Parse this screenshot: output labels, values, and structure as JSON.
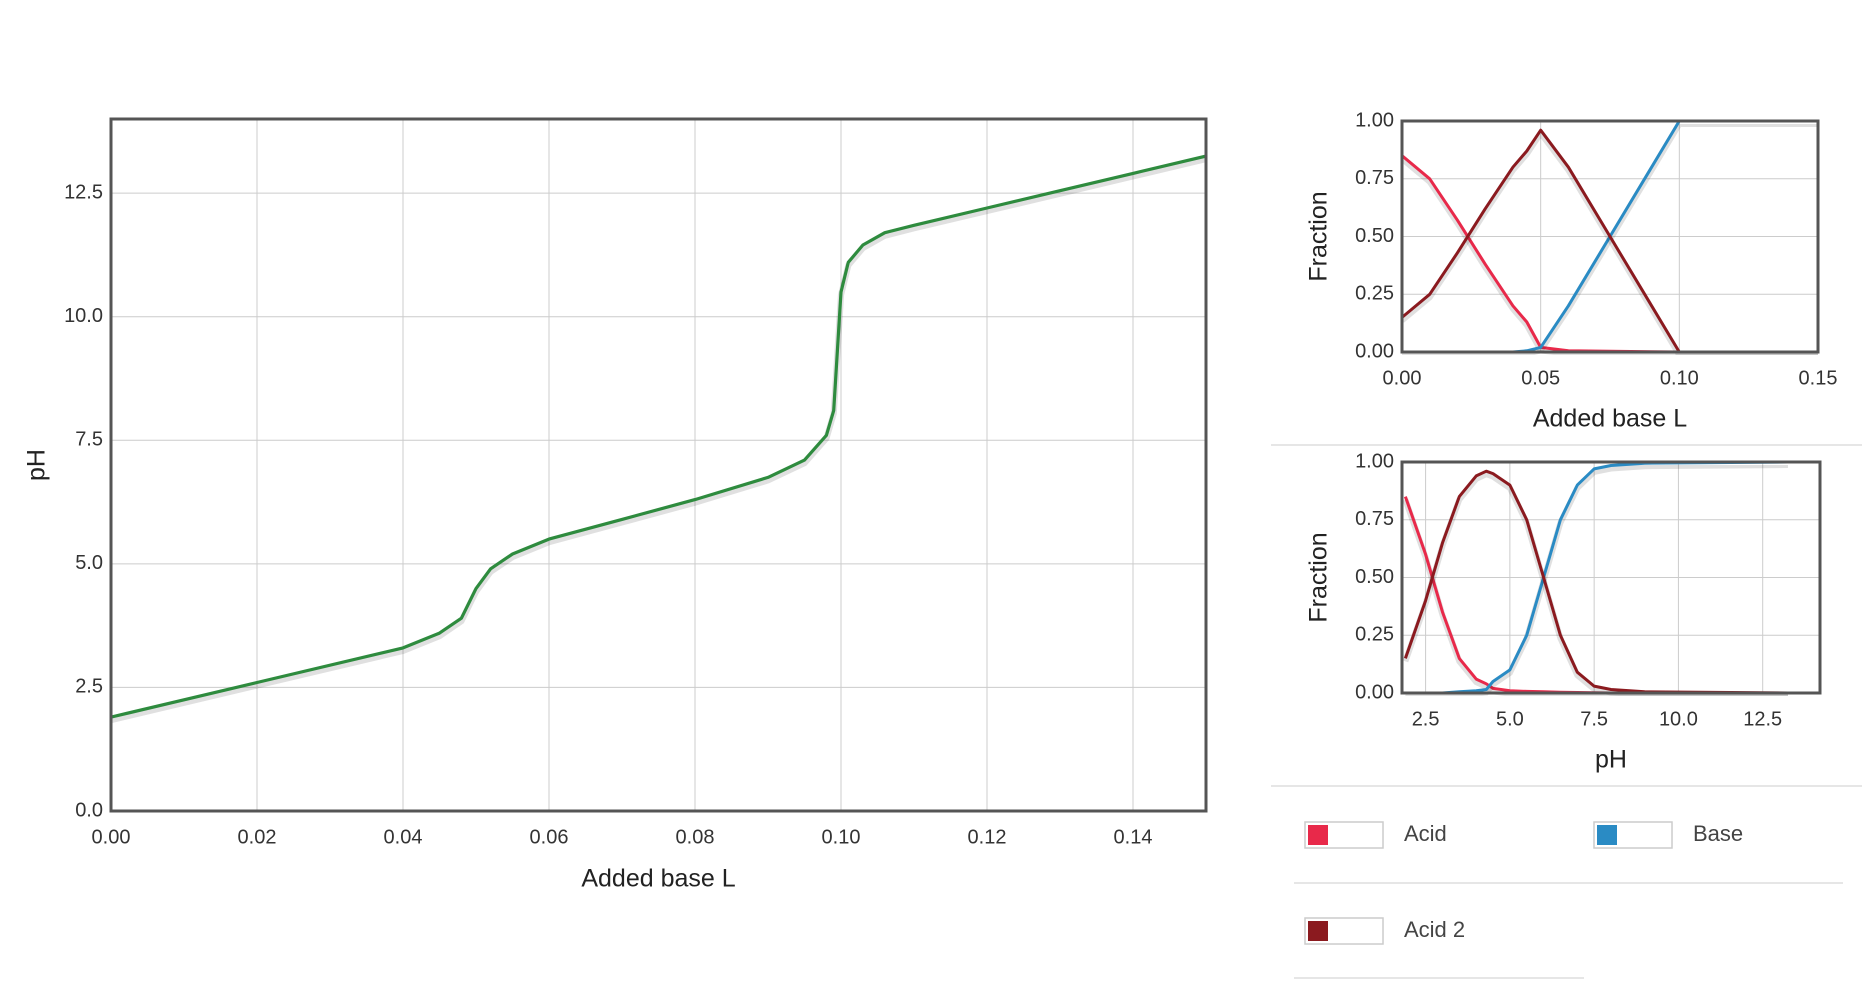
{
  "chart_data": [
    {
      "type": "line",
      "xlabel": "Added base L",
      "ylabel": "pH",
      "color": "#2e8b3e",
      "grid": true,
      "x": [
        0,
        0.02,
        0.04,
        0.045,
        0.048,
        0.05,
        0.052,
        0.055,
        0.06,
        0.07,
        0.08,
        0.09,
        0.095,
        0.098,
        0.099,
        0.1,
        0.101,
        0.103,
        0.106,
        0.11,
        0.12,
        0.13,
        0.14,
        0.15
      ],
      "values": [
        1.9,
        2.6,
        3.3,
        3.6,
        3.9,
        4.5,
        4.9,
        5.2,
        5.5,
        5.9,
        6.3,
        6.75,
        7.1,
        7.6,
        8.1,
        10.5,
        11.1,
        11.45,
        11.7,
        11.85,
        12.2,
        12.55,
        12.9,
        13.25
      ],
      "xlim": [
        0,
        0.15
      ],
      "xticks": [
        {
          "value": 0,
          "label": "0.00"
        },
        {
          "value": 0.02,
          "label": "0.02"
        },
        {
          "value": 0.04,
          "label": "0.04"
        },
        {
          "value": 0.06,
          "label": "0.06"
        },
        {
          "value": 0.08,
          "label": "0.08"
        },
        {
          "value": 0.1,
          "label": "0.10"
        },
        {
          "value": 0.12,
          "label": "0.12"
        },
        {
          "value": 0.14,
          "label": "0.14"
        }
      ],
      "ylim": [
        0,
        14
      ],
      "yticks": [
        {
          "value": 0,
          "label": "0.0"
        },
        2.5,
        {
          "value": 5,
          "label": "5.0"
        },
        7.5,
        {
          "value": 10,
          "label": "10.0"
        },
        12.5
      ]
    },
    {
      "type": "line",
      "xlabel": "Added base L",
      "ylabel": "Fraction",
      "grid": true,
      "x": [
        0,
        0.01,
        0.02,
        0.03,
        0.04,
        0.045,
        0.05,
        0.06,
        0.075,
        0.09,
        0.1,
        0.15
      ],
      "series": [
        {
          "name": "Acid",
          "color": "#e8294a",
          "values": [
            0.85,
            0.75,
            0.57,
            0.38,
            0.2,
            0.13,
            0.02,
            0.005,
            0.003,
            0.001,
            0,
            0
          ]
        },
        {
          "name": "Base",
          "color": "#2a8bc4",
          "values": [
            0,
            0,
            0,
            0,
            0,
            0.005,
            0.02,
            0.2,
            0.5,
            0.8,
            1,
            1
          ]
        },
        {
          "name": "Acid 2",
          "color": "#8b1a1f",
          "values": [
            0.15,
            0.25,
            0.43,
            0.62,
            0.8,
            0.87,
            0.96,
            0.8,
            0.5,
            0.2,
            0,
            0
          ]
        }
      ],
      "xlim": [
        0,
        0.15
      ],
      "xticks": [
        {
          "value": 0,
          "label": "0.00"
        },
        {
          "value": 0.05,
          "label": "0.05"
        },
        {
          "value": 0.1,
          "label": "0.10"
        },
        0.15
      ],
      "ylim": [
        0,
        1
      ],
      "yticks": [
        {
          "value": 0,
          "label": "0.00"
        },
        0.25,
        {
          "value": 0.5,
          "label": "0.50"
        },
        0.75,
        {
          "value": 1,
          "label": "1.00"
        }
      ]
    },
    {
      "type": "line",
      "xlabel": "pH",
      "ylabel": "Fraction",
      "grid": true,
      "x": [
        1.9,
        2.5,
        3,
        3.5,
        4,
        4.3,
        4.5,
        5,
        5.5,
        6,
        6.5,
        7,
        7.5,
        8,
        9,
        13.25
      ],
      "series": [
        {
          "name": "Acid",
          "color": "#e8294a",
          "values": [
            0.85,
            0.6,
            0.35,
            0.15,
            0.06,
            0.04,
            0.02,
            0.01,
            0.007,
            0.005,
            0.003,
            0.002,
            0.001,
            0,
            0,
            0
          ]
        },
        {
          "name": "Base",
          "color": "#2a8bc4",
          "values": [
            0,
            0,
            0,
            0.005,
            0.01,
            0.015,
            0.05,
            0.1,
            0.25,
            0.5,
            0.75,
            0.9,
            0.97,
            0.985,
            0.995,
            1
          ]
        },
        {
          "name": "Acid 2",
          "color": "#8b1a1f",
          "values": [
            0.15,
            0.4,
            0.65,
            0.85,
            0.94,
            0.96,
            0.95,
            0.9,
            0.75,
            0.5,
            0.25,
            0.09,
            0.03,
            0.015,
            0.005,
            0
          ]
        }
      ],
      "xlim": [
        1.8,
        14.2
      ],
      "xticks": [
        2.5,
        {
          "value": 5,
          "label": "5.0"
        },
        7.5,
        {
          "value": 10,
          "label": "10.0"
        },
        12.5
      ],
      "ylim": [
        0,
        1
      ],
      "yticks": [
        {
          "value": 0,
          "label": "0.00"
        },
        0.25,
        {
          "value": 0.5,
          "label": "0.50"
        },
        0.75,
        {
          "value": 1,
          "label": "1.00"
        }
      ]
    }
  ]
}
